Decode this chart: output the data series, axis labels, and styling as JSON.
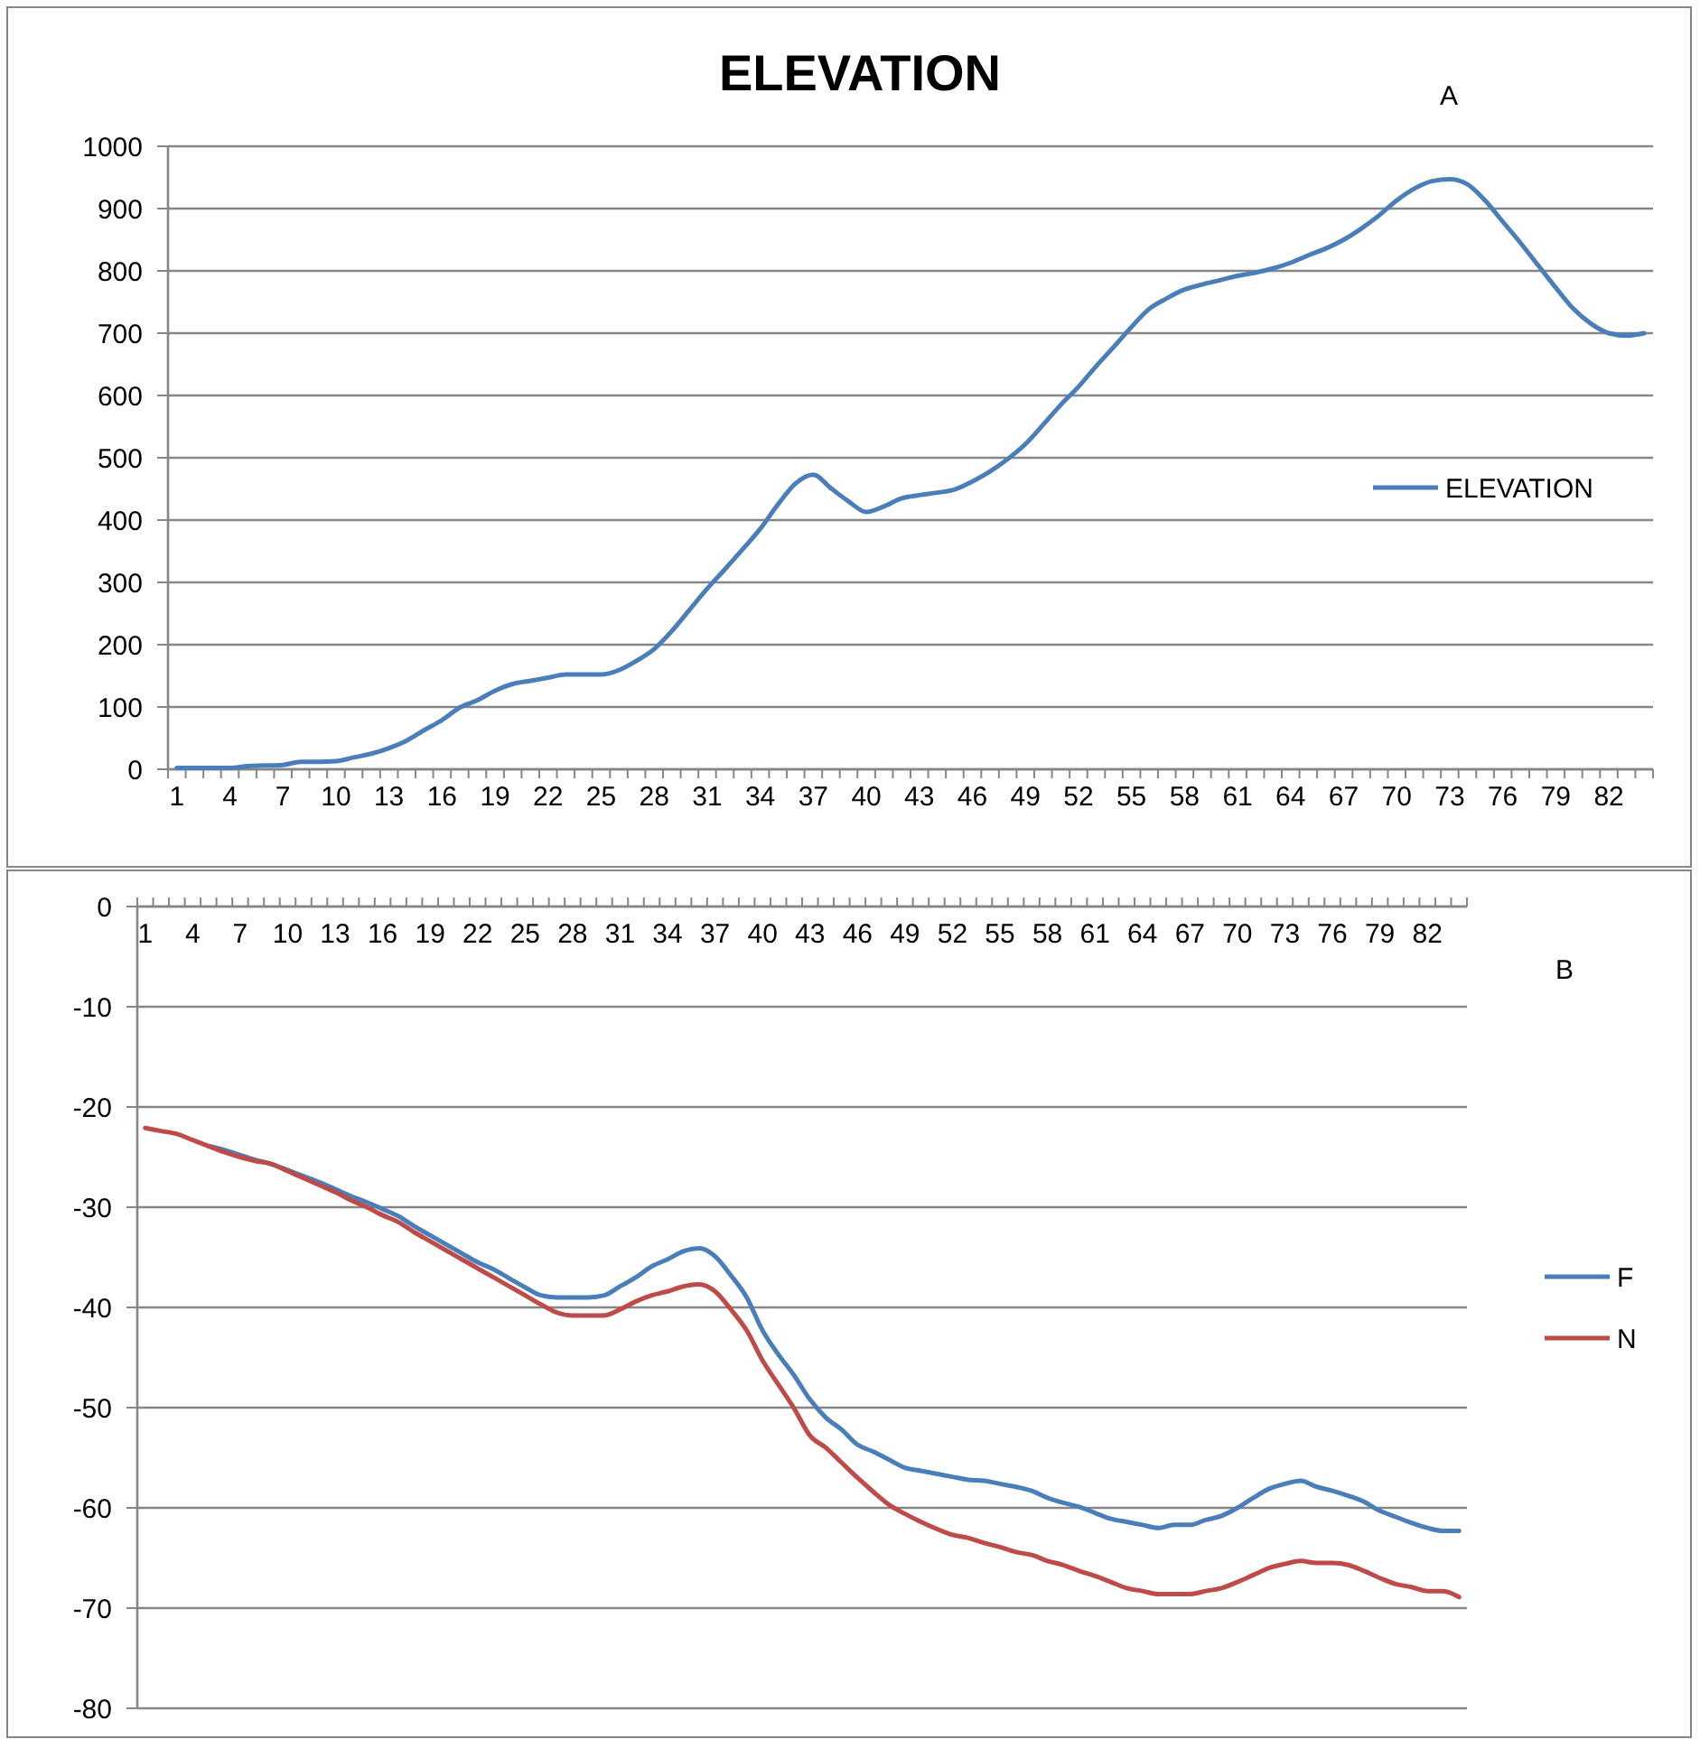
{
  "chart_data": [
    {
      "type": "line",
      "title": "ELEVATION",
      "annotations": [
        "A"
      ],
      "categories": [
        "1",
        null,
        null,
        "4",
        null,
        null,
        "7",
        null,
        null,
        "10",
        null,
        null,
        "13",
        null,
        null,
        "16",
        null,
        null,
        "19",
        null,
        null,
        "22",
        null,
        null,
        "25",
        null,
        null,
        "28",
        null,
        null,
        "31",
        null,
        null,
        "34",
        null,
        null,
        "37",
        null,
        null,
        "40",
        null,
        null,
        "43",
        null,
        null,
        "46",
        null,
        null,
        "49",
        null,
        null,
        "52",
        null,
        null,
        "55",
        null,
        null,
        "58",
        null,
        null,
        "61",
        null,
        null,
        "64",
        null,
        null,
        "67",
        null,
        null,
        "70",
        null,
        null,
        "73",
        null,
        null,
        "76",
        null,
        null,
        "79",
        null,
        null,
        "82",
        null,
        null
      ],
      "series": [
        {
          "name": "ELEVATION",
          "color": "#4a7ebb",
          "values": [
            2,
            2,
            2,
            2,
            5,
            6,
            7,
            12,
            12,
            13,
            19,
            25,
            34,
            46,
            63,
            79,
            99,
            111,
            126,
            137,
            142,
            147,
            152,
            152,
            152,
            159,
            174,
            193,
            222,
            256,
            290,
            321,
            353,
            386,
            425,
            459,
            473,
            451,
            430,
            413,
            422,
            435,
            440,
            444,
            449,
            462,
            478,
            498,
            522,
            553,
            585,
            614,
            647,
            678,
            710,
            739,
            756,
            770,
            778,
            785,
            792,
            797,
            804,
            813,
            825,
            836,
            850,
            868,
            889,
            913,
            932,
            944,
            947,
            939,
            913,
            879,
            845,
            809,
            773,
            739,
            715,
            700,
            696,
            700
          ]
        }
      ],
      "ylim": [
        0,
        1000
      ],
      "yticks": [
        0,
        100,
        200,
        300,
        400,
        500,
        600,
        700,
        800,
        900,
        1000
      ],
      "grid": "y",
      "legend": "right"
    },
    {
      "type": "line",
      "annotations": [
        "B"
      ],
      "categories": [
        "1",
        null,
        null,
        "4",
        null,
        null,
        "7",
        null,
        null,
        "10",
        null,
        null,
        "13",
        null,
        null,
        "16",
        null,
        null,
        "19",
        null,
        null,
        "22",
        null,
        null,
        "25",
        null,
        null,
        "28",
        null,
        null,
        "31",
        null,
        null,
        "34",
        null,
        null,
        "37",
        null,
        null,
        "40",
        null,
        null,
        "43",
        null,
        null,
        "46",
        null,
        null,
        "49",
        null,
        null,
        "52",
        null,
        null,
        "55",
        null,
        null,
        "58",
        null,
        null,
        "61",
        null,
        null,
        "64",
        null,
        null,
        "67",
        null,
        null,
        "70",
        null,
        null,
        "73",
        null,
        null,
        "76",
        null,
        null,
        "79",
        null,
        null,
        "82",
        null,
        null
      ],
      "series": [
        {
          "name": "F",
          "color": "#4a7ebb",
          "values": [
            null,
            null,
            null,
            null,
            -23.9,
            -24.3,
            -24.8,
            -25.3,
            -25.7,
            -26.3,
            -26.9,
            -27.5,
            -28.2,
            -28.9,
            -29.5,
            -30.2,
            -30.9,
            -31.9,
            -32.8,
            -33.7,
            -34.6,
            -35.5,
            -36.2,
            -37.1,
            -38,
            -38.8,
            -39,
            -39,
            -39,
            -38.8,
            -37.9,
            -37,
            -35.9,
            -35.2,
            -34.4,
            -34.1,
            -34.9,
            -36.8,
            -39,
            -42.3,
            -44.7,
            -46.8,
            -49.2,
            -51,
            -52.2,
            -53.7,
            -54.4,
            -55.2,
            -56,
            -56.3,
            -56.6,
            -56.9,
            -57.2,
            -57.3,
            -57.6,
            -57.9,
            -58.3,
            -59,
            -59.5,
            -59.9,
            -60.5,
            -61.1,
            -61.4,
            -61.7,
            -62,
            -61.7,
            -61.7,
            -61.2,
            -60.8,
            -60,
            -59,
            -58.1,
            -57.6,
            -57.3,
            -57.9,
            -58.3,
            -58.8,
            -59.4,
            -60.3,
            -60.9,
            -61.5,
            -62,
            -62.3,
            -62.3
          ]
        },
        {
          "name": "N",
          "color": "#be4b48",
          "values": [
            -22.1,
            -22.4,
            -22.7,
            -23.3,
            -23.9,
            -24.5,
            -25,
            -25.4,
            -25.7,
            -26.4,
            -27.1,
            -27.8,
            -28.5,
            -29.3,
            -30,
            -30.8,
            -31.5,
            -32.5,
            -33.4,
            -34.3,
            -35.2,
            -36.1,
            -37,
            -37.9,
            -38.8,
            -39.7,
            -40.5,
            -40.8,
            -40.8,
            -40.8,
            -40.2,
            -39.4,
            -38.8,
            -38.4,
            -37.9,
            -37.7,
            -38.4,
            -40.2,
            -42.3,
            -45.3,
            -47.7,
            -50.1,
            -52.8,
            -54,
            -55.5,
            -57,
            -58.4,
            -59.7,
            -60.6,
            -61.4,
            -62.1,
            -62.7,
            -63,
            -63.5,
            -63.9,
            -64.4,
            -64.7,
            -65.3,
            -65.7,
            -66.3,
            -66.8,
            -67.4,
            -68,
            -68.3,
            -68.6,
            -68.6,
            -68.6,
            -68.3,
            -68,
            -67.4,
            -66.7,
            -66,
            -65.6,
            -65.3,
            -65.5,
            -65.5,
            -65.7,
            -66.3,
            -67,
            -67.6,
            -67.9,
            -68.3,
            -68.3,
            -68.9
          ]
        }
      ],
      "ylim": [
        -80,
        0
      ],
      "yticks": [
        0,
        -10,
        -20,
        -30,
        -40,
        -50,
        -60,
        -70,
        -80
      ],
      "grid": "y",
      "legend": "right"
    }
  ]
}
